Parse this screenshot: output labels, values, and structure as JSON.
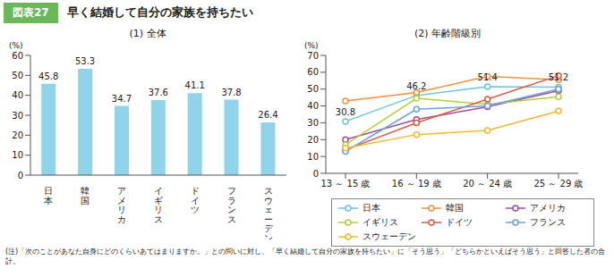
{
  "figure_label": "図表27",
  "title": "早く結婚して自分の家族を持ちたい",
  "note": "(注)「次のことがあなた自身にどのくらいあてはまりますか。」との問いに対し、「早く結婚して自分の家族を持ちたい」に「そう思う」「どちらかといえばそう思う」と回答した者の合計。",
  "chart_data": [
    {
      "type": "bar",
      "title": "(1) 全体",
      "y_label": "(%)",
      "categories": [
        "日本",
        "韓国",
        "アメリカ",
        "イギリス",
        "ドイツ",
        "フランス",
        "スウェーデン"
      ],
      "values": [
        45.8,
        53.3,
        34.7,
        37.6,
        41.1,
        37.8,
        26.4
      ],
      "color": "#8fd4ea",
      "ylim": [
        0,
        60
      ],
      "yticks": [
        0,
        10,
        20,
        30,
        40,
        50,
        60
      ],
      "grid": false,
      "data_labels": true
    },
    {
      "type": "line",
      "title": "(2) 年齢階級別",
      "y_label": "(%)",
      "categories": [
        "13 ～ 15 歳",
        "16 ～ 19 歳",
        "20 ～ 24 歳",
        "25 ～ 29 歳"
      ],
      "series": [
        {
          "name": "日本",
          "color": "#6cc4dc",
          "marker": "circle",
          "data_labels": true,
          "values": [
            30.8,
            46.2,
            51.4,
            51.2
          ]
        },
        {
          "name": "韓国",
          "color": "#f0923e",
          "marker": "circle",
          "values": [
            43,
            48,
            57.5,
            55.5
          ]
        },
        {
          "name": "アメリカ",
          "color": "#a04fa0",
          "marker": "circle",
          "values": [
            20,
            32,
            39.5,
            49
          ]
        },
        {
          "name": "イギリス",
          "color": "#b5cf3a",
          "marker": "circle",
          "values": [
            17,
            44.5,
            41,
            45.5
          ]
        },
        {
          "name": "ドイツ",
          "color": "#e0583a",
          "marker": "circle",
          "values": [
            14,
            30,
            44,
            58
          ]
        },
        {
          "name": "フランス",
          "color": "#6ba3dc",
          "marker": "circle",
          "values": [
            13,
            38,
            40,
            50
          ]
        },
        {
          "name": "スウェーデン",
          "color": "#f5b82e",
          "marker": "circle",
          "values": [
            15,
            23,
            25.5,
            37
          ]
        }
      ],
      "ylim": [
        0,
        70
      ],
      "yticks": [
        0,
        10,
        20,
        30,
        40,
        50,
        60,
        70
      ],
      "grid": false,
      "legend": "bottom"
    }
  ]
}
